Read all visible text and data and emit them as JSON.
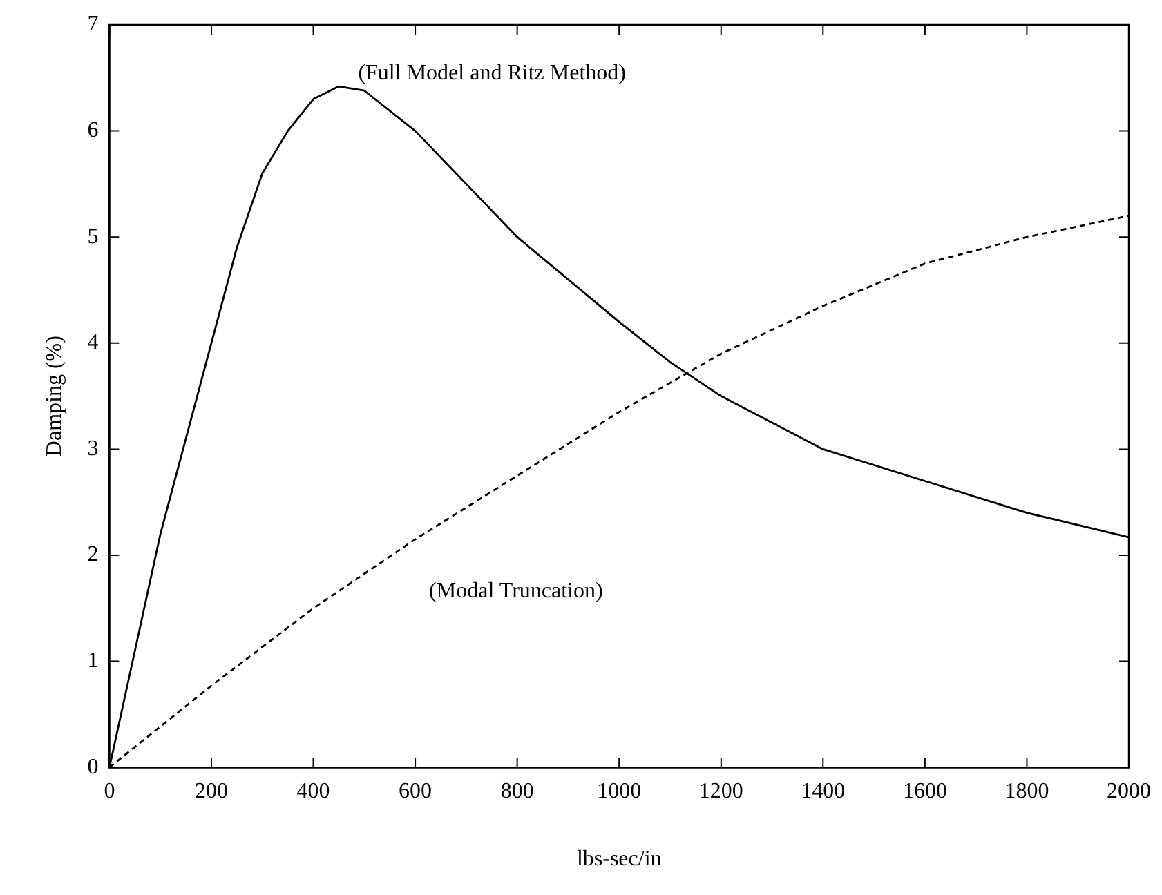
{
  "chart_data": {
    "type": "line",
    "xlabel": "lbs-sec/in",
    "ylabel": "Damping (%)",
    "xlim": [
      0,
      2000
    ],
    "ylim": [
      0,
      7
    ],
    "xticks": [
      0,
      200,
      400,
      600,
      800,
      1000,
      1200,
      1400,
      1600,
      1800,
      2000
    ],
    "yticks": [
      0,
      1,
      2,
      3,
      4,
      5,
      6,
      7
    ],
    "grid": false,
    "legend": false,
    "marker": "none",
    "series": [
      {
        "name": "(Full Model and Ritz Method)",
        "color": "#000000",
        "line_style": "solid",
        "x": [
          0,
          50,
          100,
          150,
          200,
          250,
          300,
          350,
          400,
          450,
          500,
          600,
          700,
          800,
          900,
          1000,
          1100,
          1200,
          1400,
          1600,
          1800,
          2000
        ],
        "values": [
          0,
          1.1,
          2.2,
          3.1,
          4.0,
          4.9,
          5.6,
          6.0,
          6.3,
          6.42,
          6.38,
          6.0,
          5.5,
          5.0,
          4.6,
          4.2,
          3.82,
          3.5,
          3.0,
          2.7,
          2.4,
          2.17
        ]
      },
      {
        "name": "(Modal Truncation)",
        "color": "#000000",
        "line_style": "dashed",
        "x": [
          0,
          200,
          400,
          600,
          800,
          1000,
          1200,
          1400,
          1600,
          1800,
          2000
        ],
        "values": [
          0,
          0.77,
          1.5,
          2.15,
          2.75,
          3.35,
          3.9,
          4.35,
          4.75,
          5.0,
          5.2
        ]
      }
    ]
  }
}
